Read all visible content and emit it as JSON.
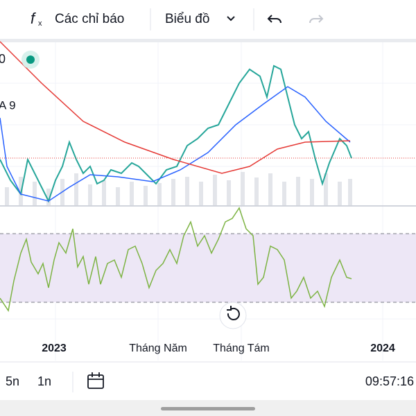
{
  "toolbar": {
    "indicators": "Các chỉ báo",
    "chart_type": "Biểu đồ"
  },
  "legend": {
    "value_fragment": "0",
    "ma_fragment": "A 9"
  },
  "x_axis": {
    "labels": [
      "2023",
      "Tháng Năm",
      "Tháng Tám",
      "2024"
    ]
  },
  "footer": {
    "ranges": [
      "5n",
      "1n"
    ],
    "time": "09:57:16"
  }
}
